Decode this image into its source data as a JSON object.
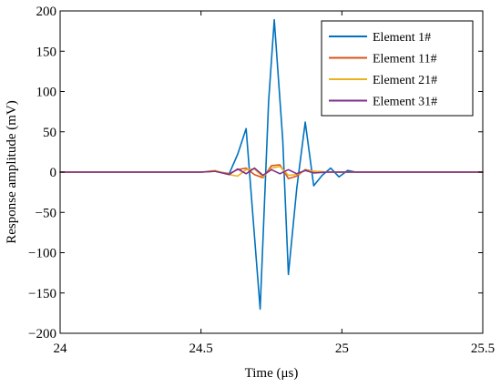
{
  "chart_data": {
    "type": "line",
    "title": "",
    "xlabel": "Time (μs)",
    "ylabel": "Response amplitude (mV)",
    "xlim": [
      24,
      25.5
    ],
    "ylim": [
      -200,
      200
    ],
    "xticks": [
      24,
      24.5,
      25,
      25.5
    ],
    "xtick_labels": [
      "24",
      "24.5",
      "25",
      "25.5"
    ],
    "yticks": [
      -200,
      -150,
      -100,
      -50,
      0,
      50,
      100,
      150,
      200
    ],
    "ytick_labels": [
      "−200",
      "−150",
      "−100",
      "−50",
      "0",
      "50",
      "100",
      "150",
      "200"
    ],
    "grid": false,
    "legend_position": "top-right",
    "series": [
      {
        "name": "Element  1#",
        "color": "#0072BD",
        "x": [
          24.0,
          24.5,
          24.55,
          24.6,
          24.63,
          24.66,
          24.69,
          24.71,
          24.74,
          24.76,
          24.79,
          24.81,
          24.84,
          24.87,
          24.9,
          24.93,
          24.96,
          24.99,
          25.02,
          25.05,
          25.08,
          25.5
        ],
        "y": [
          0,
          0,
          1,
          -2,
          22,
          54,
          -80,
          -170,
          88,
          189,
          40,
          -127,
          -20,
          62,
          -17,
          -4,
          5,
          -6,
          2,
          0,
          0,
          0
        ]
      },
      {
        "name": "Element 11#",
        "color": "#D95319",
        "x": [
          24.0,
          24.5,
          24.55,
          24.6,
          24.63,
          24.66,
          24.69,
          24.72,
          24.75,
          24.78,
          24.81,
          24.84,
          24.87,
          24.9,
          24.95,
          25.5
        ],
        "y": [
          0,
          0,
          1,
          -2,
          3,
          5,
          -3,
          -7,
          8,
          9,
          -8,
          -5,
          3,
          1,
          0,
          0
        ]
      },
      {
        "name": "Element 21#",
        "color": "#EDB120",
        "x": [
          24.0,
          24.5,
          24.55,
          24.6,
          24.63,
          24.66,
          24.69,
          24.72,
          24.75,
          24.78,
          24.81,
          24.84,
          24.87,
          24.9,
          24.95,
          25.5
        ],
        "y": [
          0,
          0,
          2,
          -3,
          -5,
          3,
          4,
          -6,
          5,
          7,
          -4,
          -3,
          2,
          1,
          0,
          0
        ]
      },
      {
        "name": "Element 31#",
        "color": "#7E2F8E",
        "x": [
          24.0,
          24.5,
          24.55,
          24.6,
          24.63,
          24.66,
          24.69,
          24.72,
          24.75,
          24.78,
          24.81,
          24.84,
          24.87,
          24.9,
          24.95,
          25.5
        ],
        "y": [
          0,
          0,
          1,
          -3,
          4,
          -2,
          5,
          -4,
          3,
          -2,
          3,
          -2,
          2,
          -1,
          0,
          0
        ]
      }
    ]
  }
}
